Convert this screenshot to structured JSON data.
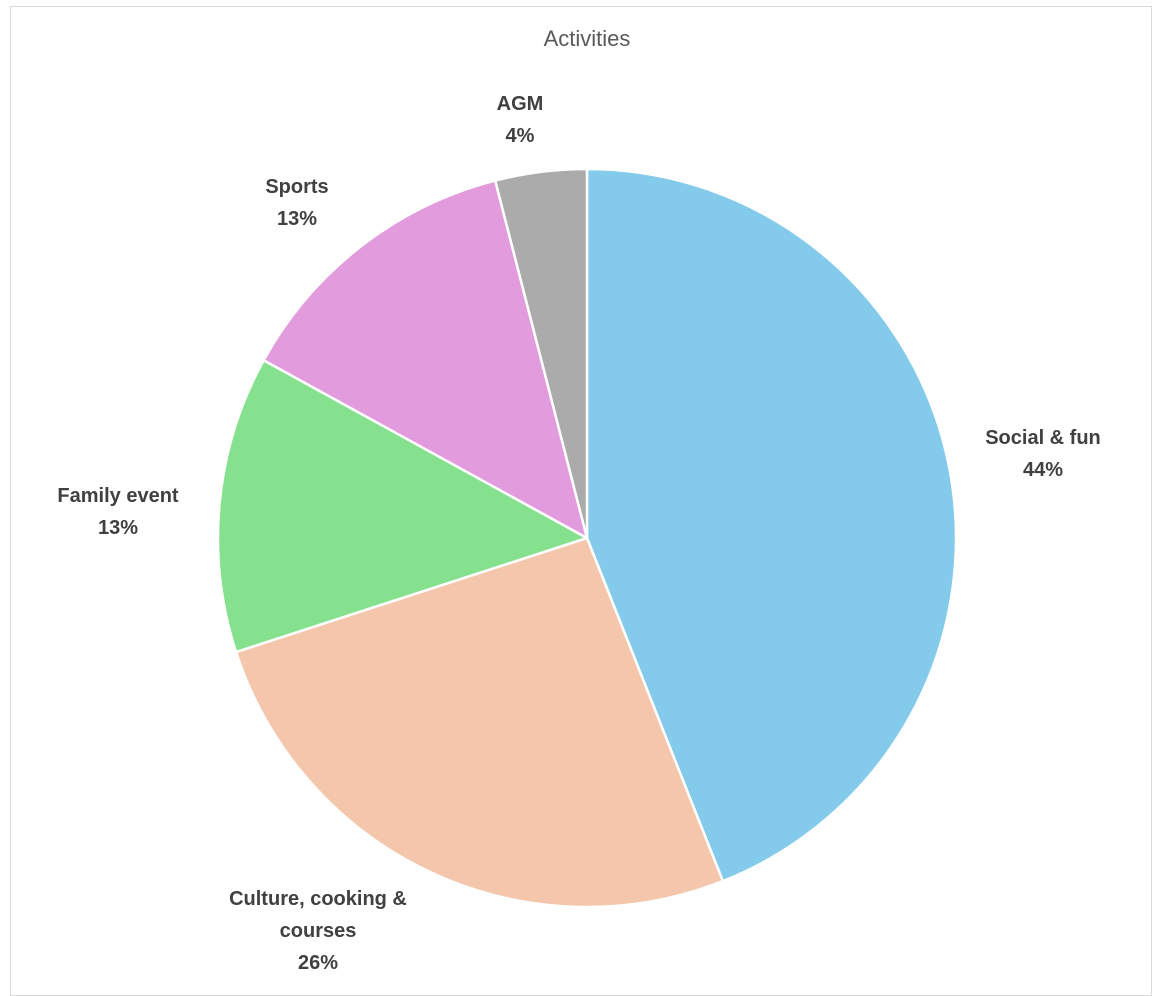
{
  "chart_data": {
    "type": "pie",
    "title": "Activities",
    "start_angle_deg": 0,
    "direction": "clockwise",
    "slices": [
      {
        "name": "Social & fun",
        "label_lines": [
          "Social & fun"
        ],
        "value": 44,
        "percent_label": "44%",
        "color": "#83CAEB"
      },
      {
        "name": "Culture, cooking & courses",
        "label_lines": [
          "Culture, cooking &",
          "courses"
        ],
        "value": 26,
        "percent_label": "26%",
        "color": "#F4C6AB"
      },
      {
        "name": "Family event",
        "label_lines": [
          "Family event"
        ],
        "value": 13,
        "percent_label": "13%",
        "color": "#86E18F"
      },
      {
        "name": "Sports",
        "label_lines": [
          "Sports"
        ],
        "value": 13,
        "percent_label": "13%",
        "color": "#E29BDD"
      },
      {
        "name": "AGM",
        "label_lines": [
          "AGM"
        ],
        "value": 4,
        "percent_label": "4%",
        "color": "#ABABAB"
      }
    ],
    "slice_border_color": "#ffffff",
    "legend": "none"
  }
}
